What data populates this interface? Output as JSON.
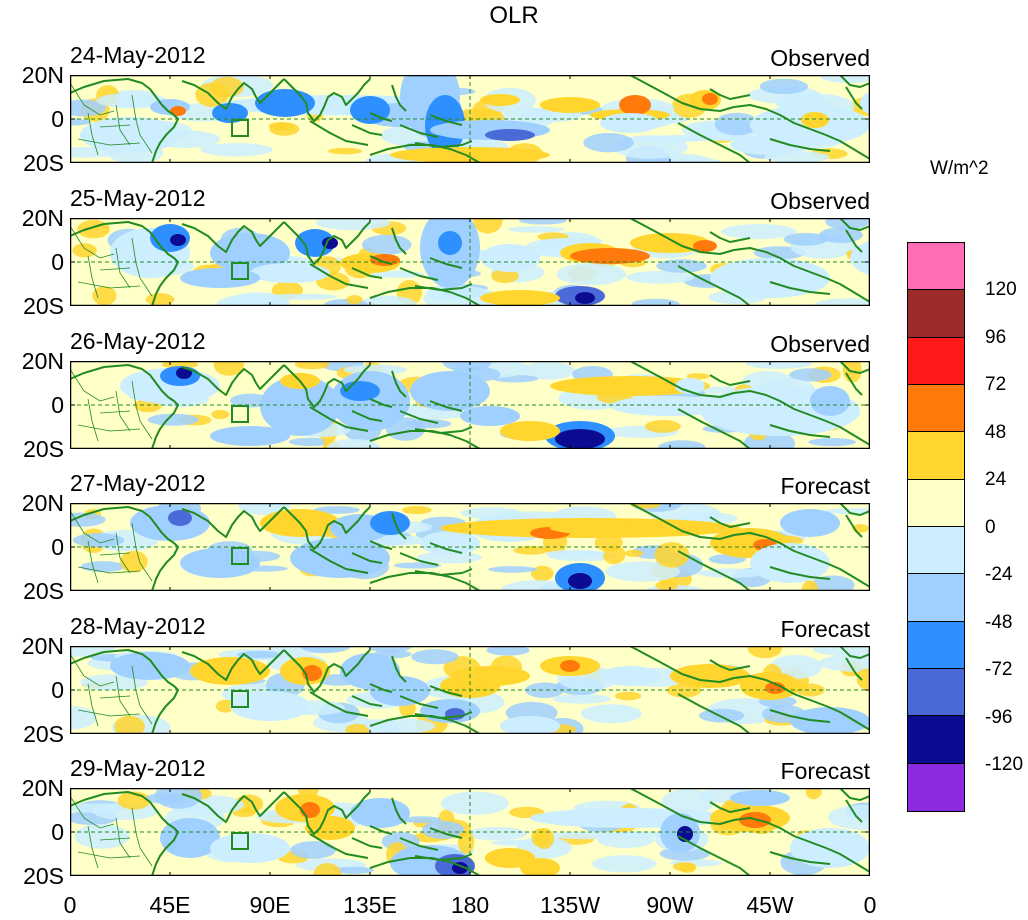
{
  "title": "OLR",
  "panels": [
    {
      "date": "24-May-2012",
      "label": "Observed"
    },
    {
      "date": "25-May-2012",
      "label": "Observed"
    },
    {
      "date": "26-May-2012",
      "label": "Observed"
    },
    {
      "date": "27-May-2012",
      "label": "Forecast"
    },
    {
      "date": "28-May-2012",
      "label": "Forecast"
    },
    {
      "date": "29-May-2012",
      "label": "Forecast"
    }
  ],
  "lat_labels": [
    "20N",
    "0",
    "20S"
  ],
  "lon_labels": [
    "0",
    "45E",
    "90E",
    "135E",
    "180",
    "135W",
    "90W",
    "45W",
    "0"
  ],
  "colorbar": {
    "units": "W/m^2",
    "levels": [
      "120",
      "96",
      "72",
      "48",
      "24",
      "0",
      "-24",
      "-48",
      "-72",
      "-96",
      "-120"
    ],
    "colors": [
      "#ff6eb4",
      "#9e2a2a",
      "#ff1a1a",
      "#ff7a0a",
      "#ffd52e",
      "#ffffc8",
      "#cceeff",
      "#a0d0ff",
      "#2e90ff",
      "#4a6ad8",
      "#0c0c92",
      "#8a2be2"
    ]
  },
  "land_color": "#228b22",
  "axis_color": "#000000"
}
